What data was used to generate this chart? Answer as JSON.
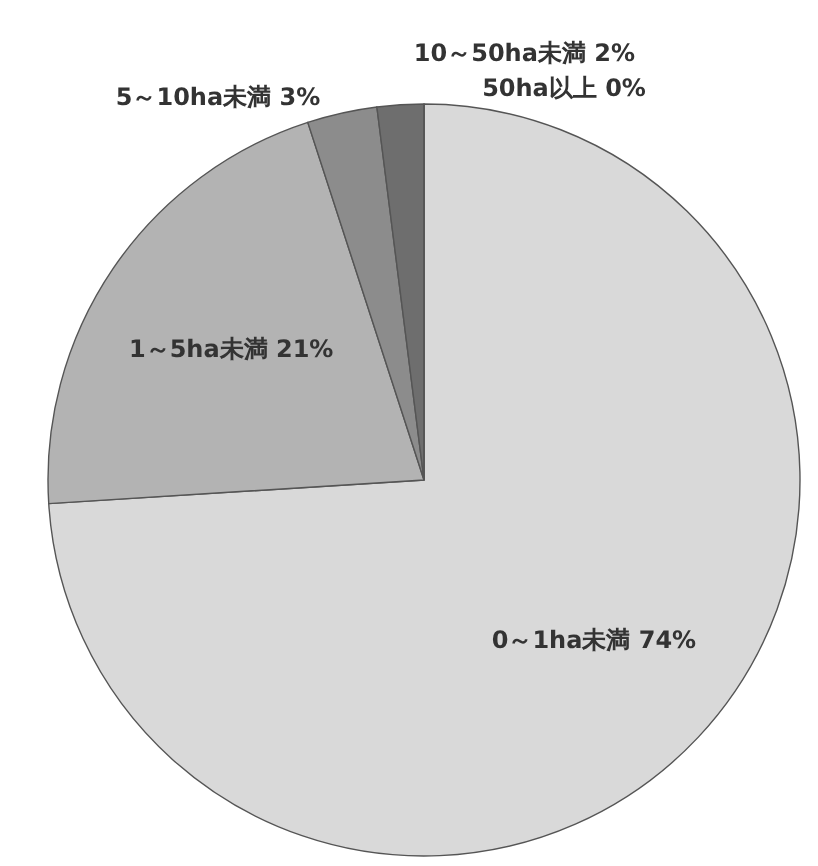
{
  "chart_data": {
    "type": "pie",
    "categories": [
      "0～1ha未満",
      "1～5ha未満",
      "5～10ha未満",
      "10～50ha未満",
      "50ha以上"
    ],
    "values": [
      74,
      21,
      3,
      2,
      0
    ],
    "value_labels": [
      "74%",
      "21%",
      "3%",
      "2%",
      "0%"
    ],
    "colors": [
      "#d9d9d9",
      "#b3b3b3",
      "#8c8c8c",
      "#6e6e6e",
      "#4d4d4d"
    ]
  }
}
